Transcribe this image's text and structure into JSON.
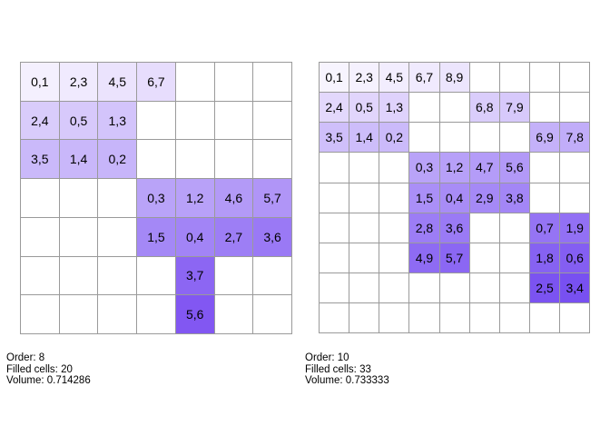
{
  "grids": [
    {
      "order_label": "Order: 8",
      "filled_label": "Filled cells: 20",
      "volume_label": "Volume: 0.714286",
      "cols": 7,
      "rows": 7,
      "cells": [
        {
          "r": 0,
          "c": 0,
          "label": "0,1",
          "color": "#f4f0fe"
        },
        {
          "r": 0,
          "c": 1,
          "label": "2,3",
          "color": "#f0eafe"
        },
        {
          "r": 0,
          "c": 2,
          "label": "4,5",
          "color": "#ebe3fd"
        },
        {
          "r": 0,
          "c": 3,
          "label": "6,7",
          "color": "#e7ddfd"
        },
        {
          "r": 1,
          "c": 0,
          "label": "2,4",
          "color": "#d9ccfb"
        },
        {
          "r": 1,
          "c": 1,
          "label": "0,5",
          "color": "#d7c9fb"
        },
        {
          "r": 1,
          "c": 2,
          "label": "1,3",
          "color": "#d3c4fb"
        },
        {
          "r": 2,
          "c": 0,
          "label": "3,5",
          "color": "#cab9fa"
        },
        {
          "r": 2,
          "c": 1,
          "label": "1,4",
          "color": "#c9b7fa"
        },
        {
          "r": 2,
          "c": 2,
          "label": "0,2",
          "color": "#c7b5fa"
        },
        {
          "r": 3,
          "c": 3,
          "label": "0,3",
          "color": "#b9a3f8"
        },
        {
          "r": 3,
          "c": 4,
          "label": "1,2",
          "color": "#b8a1f8"
        },
        {
          "r": 3,
          "c": 5,
          "label": "4,6",
          "color": "#b39af7"
        },
        {
          "r": 3,
          "c": 6,
          "label": "5,7",
          "color": "#b095f7"
        },
        {
          "r": 4,
          "c": 3,
          "label": "1,5",
          "color": "#a488f6"
        },
        {
          "r": 4,
          "c": 4,
          "label": "0,4",
          "color": "#a284f6"
        },
        {
          "r": 4,
          "c": 5,
          "label": "2,7",
          "color": "#9d7ef5"
        },
        {
          "r": 4,
          "c": 6,
          "label": "3,6",
          "color": "#9a79f5"
        },
        {
          "r": 5,
          "c": 4,
          "label": "3,7",
          "color": "#8c66f3"
        },
        {
          "r": 6,
          "c": 4,
          "label": "5,6",
          "color": "#8257f2"
        }
      ]
    },
    {
      "order_label": "Order: 10",
      "filled_label": "Filled cells: 33",
      "volume_label": "Volume: 0.733333",
      "cols": 9,
      "rows": 9,
      "cells": [
        {
          "r": 0,
          "c": 0,
          "label": "0,1",
          "color": "#f7f4fe"
        },
        {
          "r": 0,
          "c": 1,
          "label": "2,3",
          "color": "#f5f1fe"
        },
        {
          "r": 0,
          "c": 2,
          "label": "4,5",
          "color": "#f2edfe"
        },
        {
          "r": 0,
          "c": 3,
          "label": "6,7",
          "color": "#f0eafe"
        },
        {
          "r": 0,
          "c": 4,
          "label": "8,9",
          "color": "#ece5fd"
        },
        {
          "r": 1,
          "c": 0,
          "label": "2,4",
          "color": "#e3d8fc"
        },
        {
          "r": 1,
          "c": 1,
          "label": "0,5",
          "color": "#e1d5fc"
        },
        {
          "r": 1,
          "c": 2,
          "label": "1,3",
          "color": "#dfd2fc"
        },
        {
          "r": 1,
          "c": 5,
          "label": "6,8",
          "color": "#dacdfb"
        },
        {
          "r": 1,
          "c": 6,
          "label": "7,9",
          "color": "#d7c9fb"
        },
        {
          "r": 2,
          "c": 0,
          "label": "3,5",
          "color": "#cfbffa"
        },
        {
          "r": 2,
          "c": 1,
          "label": "1,4",
          "color": "#cdbdfa"
        },
        {
          "r": 2,
          "c": 2,
          "label": "0,2",
          "color": "#cbbafa"
        },
        {
          "r": 2,
          "c": 7,
          "label": "6,9",
          "color": "#c4b1f9"
        },
        {
          "r": 2,
          "c": 8,
          "label": "7,8",
          "color": "#c1adf9"
        },
        {
          "r": 3,
          "c": 3,
          "label": "0,3",
          "color": "#b9a3f8"
        },
        {
          "r": 3,
          "c": 4,
          "label": "1,2",
          "color": "#b7a0f8"
        },
        {
          "r": 3,
          "c": 5,
          "label": "4,7",
          "color": "#b49cf8"
        },
        {
          "r": 3,
          "c": 6,
          "label": "5,6",
          "color": "#b299f7"
        },
        {
          "r": 4,
          "c": 3,
          "label": "1,5",
          "color": "#aa8ff7"
        },
        {
          "r": 4,
          "c": 4,
          "label": "0,4",
          "color": "#a88cf6"
        },
        {
          "r": 4,
          "c": 5,
          "label": "2,9",
          "color": "#a589f6"
        },
        {
          "r": 4,
          "c": 6,
          "label": "3,8",
          "color": "#a386f6"
        },
        {
          "r": 5,
          "c": 3,
          "label": "2,8",
          "color": "#9c7df5"
        },
        {
          "r": 5,
          "c": 4,
          "label": "3,6",
          "color": "#9a7af5"
        },
        {
          "r": 5,
          "c": 7,
          "label": "0,7",
          "color": "#9574f4"
        },
        {
          "r": 5,
          "c": 8,
          "label": "1,9",
          "color": "#9270f4"
        },
        {
          "r": 6,
          "c": 3,
          "label": "4,9",
          "color": "#8e6bf3"
        },
        {
          "r": 6,
          "c": 4,
          "label": "5,7",
          "color": "#8b67f3"
        },
        {
          "r": 6,
          "c": 7,
          "label": "1,8",
          "color": "#8662f2"
        },
        {
          "r": 6,
          "c": 8,
          "label": "0,6",
          "color": "#845ef2"
        },
        {
          "r": 7,
          "c": 7,
          "label": "2,5",
          "color": "#7b53f1"
        },
        {
          "r": 7,
          "c": 8,
          "label": "3,4",
          "color": "#7850f1"
        }
      ]
    }
  ]
}
